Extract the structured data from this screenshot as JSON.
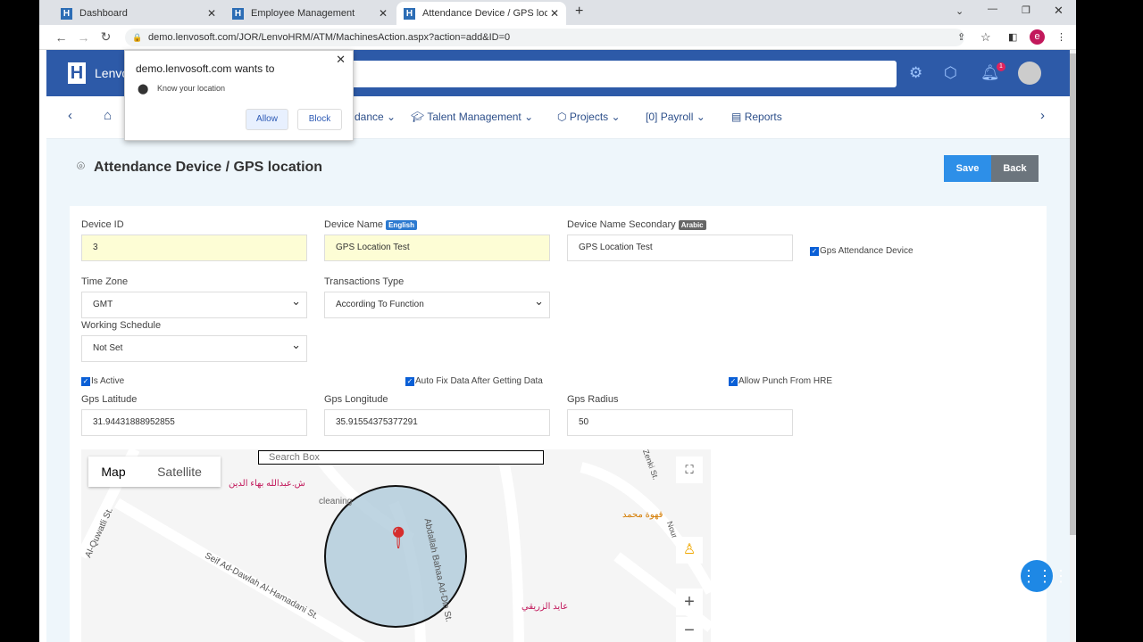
{
  "browser": {
    "tabs": [
      {
        "label": "Dashboard"
      },
      {
        "label": "Employee Management"
      },
      {
        "label": "Attendance Device / GPS locatio"
      }
    ],
    "url": "demo.lenvosoft.com/JOR/LenvoHRM/ATM/MachinesAction.aspx?action=add&ID=0",
    "profile": "e"
  },
  "permission": {
    "title": "demo.lenvosoft.com wants to",
    "request": "Know your location",
    "allow": "Allow",
    "block": "Block"
  },
  "header": {
    "brand": "Lenvo",
    "notifications": "1"
  },
  "menu": {
    "items": [
      {
        "label": "dance"
      },
      {
        "label": "Talent Management"
      },
      {
        "label": "Projects"
      },
      {
        "label": "Payroll"
      },
      {
        "label": "Reports"
      }
    ]
  },
  "page": {
    "title": "Attendance Device / GPS location",
    "save": "Save",
    "back": "Back"
  },
  "form": {
    "device_id": {
      "label": "Device ID",
      "value": "3"
    },
    "device_name": {
      "label": "Device Name",
      "tag": "English",
      "value": "GPS Location Test"
    },
    "device_name2": {
      "label": "Device Name Secondary",
      "tag": "Arabic",
      "value": "GPS Location Test"
    },
    "gps_device": {
      "label": "Gps Attendance Device",
      "checked": true
    },
    "time_zone": {
      "label": "Time Zone",
      "value": "GMT"
    },
    "transactions": {
      "label": "Transactions Type",
      "value": "According To Function"
    },
    "schedule": {
      "label": "Working Schedule",
      "value": "Not Set"
    },
    "is_active": {
      "label": "Is Active",
      "checked": true
    },
    "auto_fix": {
      "label": "Auto Fix Data After Getting Data",
      "checked": true
    },
    "allow_hre": {
      "label": "Allow Punch From HRE",
      "checked": true
    },
    "lat": {
      "label": "Gps Latitude",
      "value": "31.94431888952855"
    },
    "lng": {
      "label": "Gps Longitude",
      "value": "35.91554375377291"
    },
    "radius": {
      "label": "Gps Radius",
      "value": "50"
    }
  },
  "map": {
    "search_placeholder": "Search Box",
    "map_tab": "Map",
    "satellite_tab": "Satellite",
    "labels": {
      "street1": "Seif Ad-Dawlah Al-Hamadani St.",
      "street2": "Abdallah Bahaa Ad-Din St.",
      "street3": "Al-Quwatli St.",
      "street4": "Zenki St.",
      "street5": "Nour",
      "poi1": "ش.عبدالله بهاء الدين",
      "poi2": "cleaning",
      "poi3": "قهوة محمد",
      "poi4": "عايد الزريقي"
    }
  }
}
